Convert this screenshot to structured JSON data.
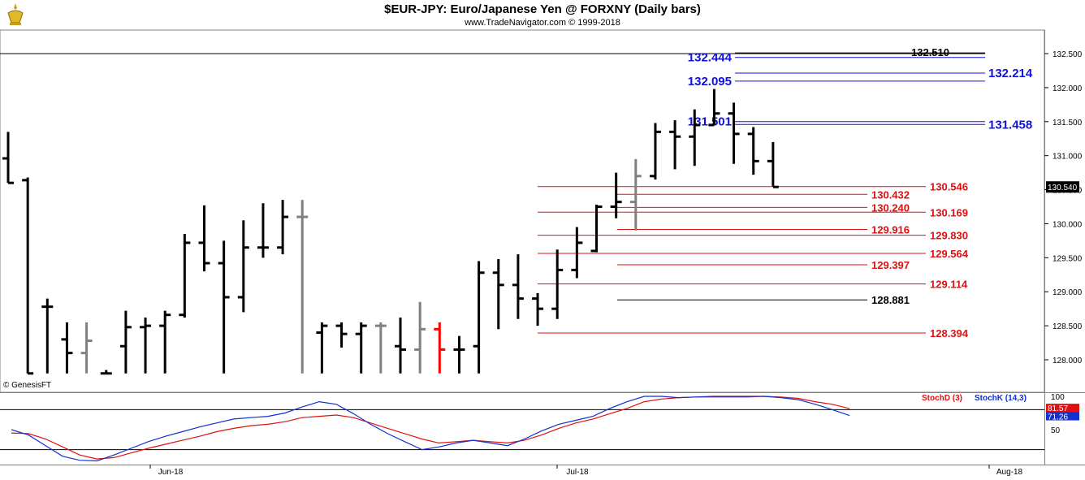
{
  "header": {
    "title": "$EUR-JPY:  Euro/Japanese Yen @ FORXNY  (Daily bars)",
    "subtitle": "www.TradeNavigator.com © 1999-2018"
  },
  "credit": "© GenesisFT",
  "colors": {
    "bar": "#000000",
    "bar_gray": "#808080",
    "bar_red": "#ff0000",
    "level_red": "#e01010",
    "level_blue": "#1010e0",
    "level_black": "#000000",
    "stoch_d": "#e01010",
    "stoch_k": "#1030d0"
  },
  "chart_data": [
    {
      "type": "ohlc",
      "title": "$EUR-JPY:  Euro/Japanese Yen @ FORXNY  (Daily bars)",
      "ylim": [
        127.8,
        132.75
      ],
      "y_ticks": [
        "128.000",
        "128.500",
        "129.000",
        "129.500",
        "130.000",
        "130.500",
        "131.000",
        "131.500",
        "132.000",
        "132.500"
      ],
      "last_price": "130.540",
      "x_labels": [
        "Jun-18",
        "Jul-18",
        "Aug-18"
      ],
      "bars": [
        {
          "o": 130.96,
          "h": 131.35,
          "l": 130.6,
          "c": 130.6,
          "col": "black"
        },
        {
          "o": 130.64,
          "h": 130.68,
          "l": 127.8,
          "c": 127.8,
          "col": "black"
        },
        {
          "o": 128.78,
          "h": 128.9,
          "l": 127.8,
          "c": 128.78,
          "col": "black"
        },
        {
          "o": 128.3,
          "h": 128.55,
          "l": 127.8,
          "c": 128.1,
          "col": "black"
        },
        {
          "o": 128.1,
          "h": 128.55,
          "l": 127.8,
          "c": 128.28,
          "col": "gray"
        },
        {
          "o": 127.8,
          "h": 127.85,
          "l": 127.8,
          "c": 127.8,
          "col": "black"
        },
        {
          "o": 128.2,
          "h": 128.72,
          "l": 127.8,
          "c": 128.48,
          "col": "black"
        },
        {
          "o": 128.48,
          "h": 128.62,
          "l": 127.8,
          "c": 128.5,
          "col": "black"
        },
        {
          "o": 128.5,
          "h": 128.72,
          "l": 127.8,
          "c": 128.66,
          "col": "black"
        },
        {
          "o": 128.66,
          "h": 129.85,
          "l": 128.62,
          "c": 129.72,
          "col": "black"
        },
        {
          "o": 129.72,
          "h": 130.27,
          "l": 129.3,
          "c": 129.42,
          "col": "black"
        },
        {
          "o": 129.42,
          "h": 129.75,
          "l": 127.8,
          "c": 128.92,
          "col": "black"
        },
        {
          "o": 128.92,
          "h": 130.05,
          "l": 128.7,
          "c": 129.65,
          "col": "black"
        },
        {
          "o": 129.65,
          "h": 130.3,
          "l": 129.5,
          "c": 129.65,
          "col": "black"
        },
        {
          "o": 129.65,
          "h": 130.35,
          "l": 129.55,
          "c": 130.1,
          "col": "black"
        },
        {
          "o": 130.1,
          "h": 130.35,
          "l": 127.8,
          "c": 130.1,
          "col": "gray"
        },
        {
          "o": 128.4,
          "h": 128.55,
          "l": 127.8,
          "c": 128.5,
          "col": "black"
        },
        {
          "o": 128.5,
          "h": 128.55,
          "l": 128.18,
          "c": 128.38,
          "col": "black"
        },
        {
          "o": 128.38,
          "h": 128.55,
          "l": 127.8,
          "c": 128.5,
          "col": "black"
        },
        {
          "o": 128.5,
          "h": 128.55,
          "l": 127.8,
          "c": 128.5,
          "col": "gray"
        },
        {
          "o": 128.2,
          "h": 128.62,
          "l": 127.8,
          "c": 128.15,
          "col": "black"
        },
        {
          "o": 128.15,
          "h": 128.85,
          "l": 127.8,
          "c": 128.45,
          "col": "gray"
        },
        {
          "o": 128.45,
          "h": 128.55,
          "l": 127.8,
          "c": 128.15,
          "col": "red"
        },
        {
          "o": 128.15,
          "h": 128.35,
          "l": 127.8,
          "c": 128.15,
          "col": "black"
        },
        {
          "o": 128.2,
          "h": 129.45,
          "l": 127.8,
          "c": 129.28,
          "col": "black"
        },
        {
          "o": 129.28,
          "h": 129.48,
          "l": 128.45,
          "c": 129.1,
          "col": "black"
        },
        {
          "o": 129.1,
          "h": 129.55,
          "l": 128.6,
          "c": 128.9,
          "col": "black"
        },
        {
          "o": 128.9,
          "h": 128.98,
          "l": 128.5,
          "c": 128.75,
          "col": "black"
        },
        {
          "o": 128.75,
          "h": 129.62,
          "l": 128.6,
          "c": 129.32,
          "col": "black"
        },
        {
          "o": 129.32,
          "h": 129.95,
          "l": 129.2,
          "c": 129.72,
          "col": "black"
        },
        {
          "o": 129.6,
          "h": 130.28,
          "l": 129.58,
          "c": 130.25,
          "col": "black"
        },
        {
          "o": 130.25,
          "h": 130.75,
          "l": 130.08,
          "c": 130.32,
          "col": "black"
        },
        {
          "o": 130.32,
          "h": 130.95,
          "l": 129.9,
          "c": 130.7,
          "col": "gray"
        },
        {
          "o": 130.7,
          "h": 131.48,
          "l": 130.65,
          "c": 131.35,
          "col": "black"
        },
        {
          "o": 131.35,
          "h": 131.52,
          "l": 130.8,
          "c": 131.28,
          "col": "black"
        },
        {
          "o": 131.28,
          "h": 131.68,
          "l": 130.85,
          "c": 131.45,
          "col": "black"
        },
        {
          "o": 131.45,
          "h": 131.98,
          "l": 131.45,
          "c": 131.62,
          "col": "black"
        },
        {
          "o": 131.62,
          "h": 131.78,
          "l": 130.88,
          "c": 131.32,
          "col": "black"
        },
        {
          "o": 131.32,
          "h": 131.42,
          "l": 130.72,
          "c": 130.92,
          "col": "black"
        },
        {
          "o": 130.92,
          "h": 131.2,
          "l": 130.55,
          "c": 130.54,
          "col": "black"
        }
      ],
      "levels": [
        {
          "value": 132.51,
          "label": "132.510",
          "color": "black",
          "side": "right"
        },
        {
          "value": 132.444,
          "label": "132.444",
          "color": "blue",
          "side": "left"
        },
        {
          "value": 132.214,
          "label": "132.214",
          "color": "blue",
          "side": "right"
        },
        {
          "value": 132.095,
          "label": "132.095",
          "color": "blue",
          "side": "left"
        },
        {
          "value": 131.501,
          "label": "131.501",
          "color": "blue",
          "side": "left"
        },
        {
          "value": 131.458,
          "label": "131.458",
          "color": "blue",
          "side": "right"
        },
        {
          "value": 130.546,
          "label": "130.546",
          "color": "red",
          "side": "right"
        },
        {
          "value": 130.432,
          "label": "130.432",
          "color": "red",
          "side": "left"
        },
        {
          "value": 130.24,
          "label": "130.240",
          "color": "red",
          "side": "left"
        },
        {
          "value": 130.169,
          "label": "130.169",
          "color": "red",
          "side": "right"
        },
        {
          "value": 129.916,
          "label": "129.916",
          "color": "red",
          "side": "left"
        },
        {
          "value": 129.83,
          "label": "129.830",
          "color": "red",
          "side": "right"
        },
        {
          "value": 129.564,
          "label": "129.564",
          "color": "red",
          "side": "right"
        },
        {
          "value": 129.397,
          "label": "129.397",
          "color": "red",
          "side": "left"
        },
        {
          "value": 129.114,
          "label": "129.114",
          "color": "red",
          "side": "right"
        },
        {
          "value": 128.881,
          "label": "128.881",
          "color": "black",
          "side": "left"
        },
        {
          "value": 128.394,
          "label": "128.394",
          "color": "red",
          "side": "right"
        }
      ]
    },
    {
      "type": "line",
      "series": [
        {
          "name": "StochD (3)",
          "values": [
            45,
            44,
            36,
            24,
            12,
            6,
            8,
            15,
            22,
            28,
            34,
            40,
            47,
            52,
            56,
            58,
            62,
            68,
            70,
            72,
            68,
            60,
            52,
            44,
            36,
            30,
            32,
            34,
            32,
            30,
            34,
            42,
            52,
            60,
            66,
            74,
            82,
            92,
            96,
            98,
            99,
            99,
            99,
            99,
            100,
            99,
            97,
            92,
            88,
            81.57
          ]
        },
        {
          "name": "StochK (14,3)",
          "values": [
            50,
            42,
            26,
            10,
            4,
            3,
            12,
            22,
            32,
            40,
            47,
            54,
            60,
            66,
            68,
            70,
            75,
            84,
            92,
            88,
            74,
            58,
            44,
            32,
            20,
            24,
            30,
            34,
            30,
            26,
            36,
            48,
            58,
            64,
            70,
            82,
            92,
            100,
            100,
            98,
            99,
            100,
            100,
            100,
            100,
            98,
            95,
            88,
            80,
            71.26
          ]
        }
      ],
      "ylim": [
        0,
        100
      ],
      "y_ticks": [
        "100",
        "50"
      ],
      "d_last": "81.57",
      "k_last": "71.26"
    }
  ]
}
